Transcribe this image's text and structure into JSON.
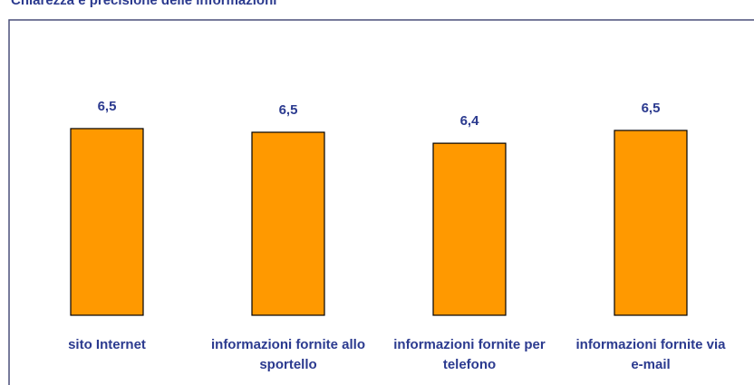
{
  "chart_data": {
    "type": "bar",
    "title": "Chiarezza e precisione delle informazioni",
    "categories": [
      "sito Internet",
      "informazioni fornite allo sportello",
      "informazioni fornite per telefono",
      "informazioni fornite via e-mail"
    ],
    "values": [
      6.54,
      6.5,
      6.38,
      6.52
    ],
    "value_labels": [
      "6,5",
      "6,5",
      "6,4",
      "6,5"
    ],
    "color": "#ff9900",
    "ylim": [
      4.5,
      7.0
    ]
  }
}
